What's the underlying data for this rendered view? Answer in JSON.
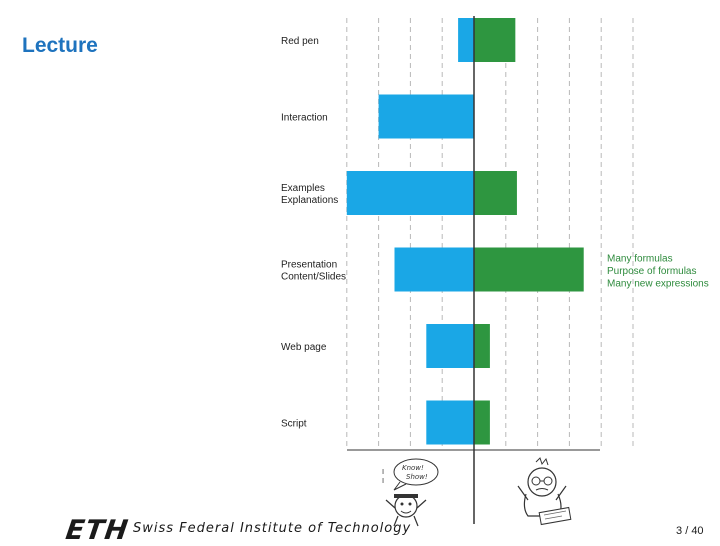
{
  "slide": {
    "title": "Lecture",
    "footer_logo": "ETH",
    "footer_text": "Swiss Federal Institute of Technology",
    "page_current": "3",
    "page_separator": "/",
    "page_total": "40"
  },
  "colors": {
    "title": "#1e73be",
    "blue_bar": "#1aa7e6",
    "green_bar": "#2e9640",
    "annotation": "#2e8b3d",
    "gridline": "#b8b8b8"
  },
  "chart_data": {
    "type": "bar",
    "orientation": "horizontal-diverging",
    "categories": [
      [
        "Red pen"
      ],
      [
        "Interaction"
      ],
      [
        "Examples",
        "Explanations"
      ],
      [
        "Presentation",
        "Content/Slides"
      ],
      [
        "Web page"
      ],
      [
        "Script"
      ]
    ],
    "series": [
      {
        "color": "#1aa7e6",
        "values": [
          -0.5,
          -3,
          -4,
          -2.5,
          -1.5,
          -1.5
        ]
      },
      {
        "color": "#2e9640",
        "values": [
          1.3,
          0,
          1.35,
          3.45,
          0.5,
          0.5
        ]
      }
    ],
    "xlim": [
      -4,
      5
    ],
    "grid": true,
    "annotations": [
      {
        "category_index": 3,
        "lines": [
          "Many formulas",
          "Purpose of formulas",
          "Many new expressions"
        ]
      }
    ]
  },
  "cartoons": {
    "left_bubble_text": [
      "Know!",
      "Show!"
    ],
    "left_icon": "confident-student-icon",
    "right_icon": "stressed-student-icon"
  }
}
